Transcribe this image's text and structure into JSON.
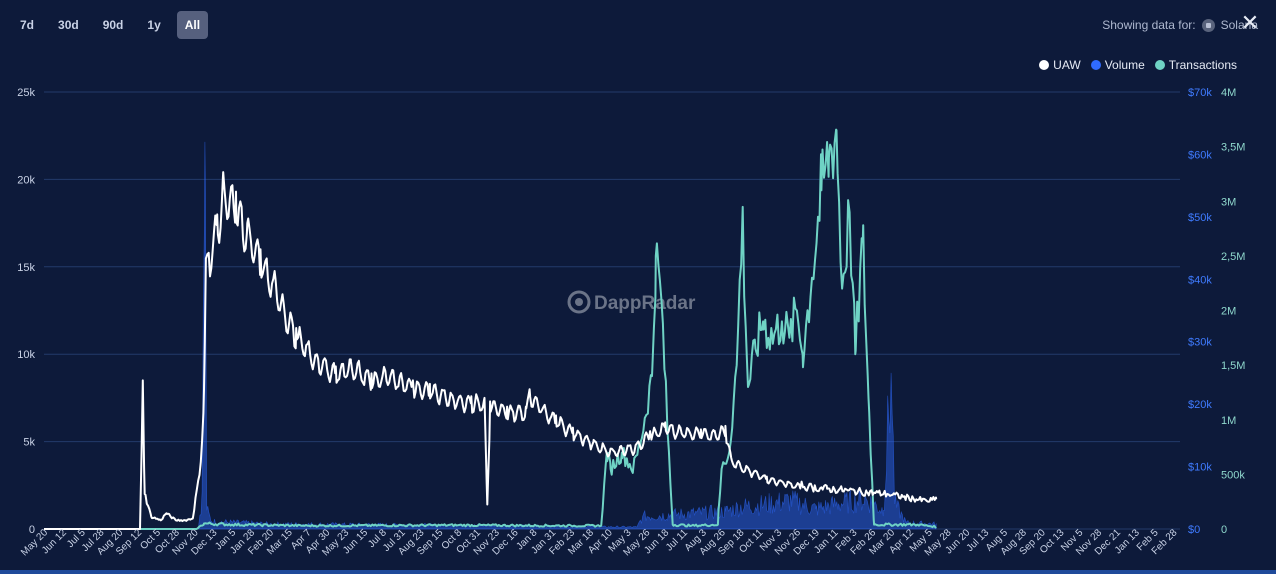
{
  "range_buttons": [
    "7d",
    "30d",
    "90d",
    "1y",
    "All"
  ],
  "active_range": "All",
  "showing": {
    "label": "Showing data for:",
    "chain": "Solana"
  },
  "watermark": "DappRadar",
  "colors": {
    "uaw": "#ffffff",
    "volume": "#2f6bff",
    "transactions": "#6fd3c5",
    "background": "#0d1a3a",
    "grid": "#233a6a"
  },
  "chart_data": {
    "type": "line",
    "title": "",
    "legend_position": "top-right",
    "grid": true,
    "x_ticks": [
      "May 20",
      "Jun 12",
      "Jul 5",
      "Jul 28",
      "Aug 20",
      "Sep 12",
      "Oct 5",
      "Oct 28",
      "Nov 20",
      "Dec 13",
      "Jan 5",
      "Jan 28",
      "Feb 20",
      "Mar 15",
      "Apr 7",
      "Apr 30",
      "May 23",
      "Jun 15",
      "Jul 8",
      "Jul 31",
      "Aug 23",
      "Sep 15",
      "Oct 8",
      "Oct 31",
      "Nov 23",
      "Dec 16",
      "Jan 8",
      "Jan 31",
      "Feb 23",
      "Mar 18",
      "Apr 10",
      "May 3",
      "May 26",
      "Jun 18",
      "Jul 11",
      "Aug 3",
      "Aug 26",
      "Sep 18",
      "Oct 11",
      "Nov 3",
      "Nov 26",
      "Dec 19",
      "Jan 11",
      "Feb 3",
      "Feb 26",
      "Mar 20",
      "Apr 12",
      "May 5",
      "May 28",
      "Jun 20",
      "Jul 13",
      "Aug 5",
      "Aug 28",
      "Sep 20",
      "Oct 13",
      "Nov 5",
      "Nov 28",
      "Dec 21",
      "Jan 13",
      "Feb 5",
      "Feb 28"
    ],
    "axes": {
      "uaw": {
        "ylim": [
          0,
          25000
        ],
        "ticks": [
          "0",
          "5k",
          "10k",
          "15k",
          "20k",
          "25k"
        ]
      },
      "volume": {
        "ylim": [
          0,
          70000
        ],
        "ticks": [
          "$0",
          "$10k",
          "$20k",
          "$30k",
          "$40k",
          "$50k",
          "$60k",
          "$70k"
        ]
      },
      "transactions": {
        "ylim": [
          0,
          4000000
        ],
        "ticks": [
          "0",
          "500k",
          "1M",
          "1,5M",
          "2M",
          "2,5M",
          "3M",
          "3,5M",
          "4M"
        ]
      }
    },
    "series": [
      {
        "name": "UAW",
        "axis": "uaw",
        "type": "line",
        "points": [
          [
            0,
            0
          ],
          [
            5.1,
            0
          ],
          [
            5.25,
            8500
          ],
          [
            5.35,
            2000
          ],
          [
            5.7,
            700
          ],
          [
            6.2,
            500
          ],
          [
            6.5,
            900
          ],
          [
            7,
            500
          ],
          [
            7.5,
            500
          ],
          [
            7.9,
            600
          ],
          [
            8.3,
            3500
          ],
          [
            8.5,
            8000
          ],
          [
            8.6,
            15500
          ],
          [
            8.75,
            15800
          ],
          [
            9.2,
            18000
          ],
          [
            9.5,
            20000
          ],
          [
            10.2,
            19300
          ],
          [
            10.8,
            17500
          ],
          [
            11.5,
            16000
          ],
          [
            12.3,
            14300
          ],
          [
            13.4,
            11500
          ],
          [
            14.5,
            10000
          ],
          [
            15.5,
            9300
          ],
          [
            16.3,
            9700
          ],
          [
            17.4,
            8900
          ],
          [
            18.5,
            9100
          ],
          [
            19.6,
            8500
          ],
          [
            20.5,
            8300
          ],
          [
            21.6,
            7800
          ],
          [
            22.7,
            7600
          ],
          [
            23.4,
            7500
          ],
          [
            23.55,
            1400
          ],
          [
            23.7,
            7300
          ],
          [
            24.6,
            7000
          ],
          [
            25.6,
            7000
          ],
          [
            25.8,
            8000
          ],
          [
            26.6,
            7100
          ],
          [
            27.2,
            6500
          ],
          [
            28.1,
            5800
          ],
          [
            29.2,
            5100
          ],
          [
            30.1,
            4600
          ],
          [
            30.6,
            4700
          ],
          [
            31.5,
            4900
          ],
          [
            32.2,
            5600
          ],
          [
            33,
            6100
          ],
          [
            33.8,
            5800
          ],
          [
            34.9,
            5700
          ],
          [
            35.6,
            5600
          ],
          [
            36.2,
            5900
          ],
          [
            36.5,
            4100
          ],
          [
            37.4,
            3500
          ],
          [
            38.4,
            3000
          ],
          [
            39.5,
            2700
          ],
          [
            40.6,
            2400
          ],
          [
            41.6,
            2300
          ],
          [
            42.7,
            2200
          ],
          [
            43.7,
            2100
          ],
          [
            44.8,
            2000
          ],
          [
            45.8,
            1800
          ],
          [
            46.9,
            1600
          ],
          [
            47.4,
            1700
          ]
        ]
      },
      {
        "name": "Volume",
        "axis": "volume",
        "type": "area",
        "points": [
          [
            0,
            0
          ],
          [
            8.2,
            0
          ],
          [
            8.4,
            6000
          ],
          [
            8.55,
            62000
          ],
          [
            8.65,
            3000
          ],
          [
            8.9,
            1200
          ],
          [
            12,
            800
          ],
          [
            21,
            600
          ],
          [
            31.5,
            300
          ],
          [
            31.8,
            2000
          ],
          [
            36.2,
            2800
          ],
          [
            37,
            3500
          ],
          [
            38.5,
            4000
          ],
          [
            39.7,
            4500
          ],
          [
            41,
            3200
          ],
          [
            42.2,
            4000
          ],
          [
            43.6,
            4800
          ],
          [
            44.6,
            3000
          ],
          [
            45,
            25000
          ],
          [
            45.2,
            4000
          ],
          [
            45.8,
            1000
          ],
          [
            47.4,
            800
          ]
        ]
      },
      {
        "name": "Transactions",
        "axis": "transactions",
        "type": "line",
        "points": [
          [
            0,
            0
          ],
          [
            8.1,
            0
          ],
          [
            8.5,
            50000
          ],
          [
            10,
            40000
          ],
          [
            14,
            30000
          ],
          [
            22,
            35000
          ],
          [
            28,
            30000
          ],
          [
            29.6,
            30000
          ],
          [
            29.9,
            700000
          ],
          [
            30.1,
            550000
          ],
          [
            30.7,
            700000
          ],
          [
            31.3,
            550000
          ],
          [
            31.7,
            800000
          ],
          [
            32.3,
            1400000
          ],
          [
            32.5,
            2500000
          ],
          [
            32.8,
            2100000
          ],
          [
            33.1,
            1000000
          ],
          [
            33.4,
            40000
          ],
          [
            34.4,
            30000
          ],
          [
            35.8,
            40000
          ],
          [
            36,
            550000
          ],
          [
            36.4,
            700000
          ],
          [
            36.8,
            1500000
          ],
          [
            37.1,
            2850000
          ],
          [
            37.4,
            1300000
          ],
          [
            37.8,
            1650000
          ],
          [
            38.2,
            1900000
          ],
          [
            38.7,
            1750000
          ],
          [
            39.2,
            1900000
          ],
          [
            39.6,
            1750000
          ],
          [
            40,
            2000000
          ],
          [
            40.3,
            1600000
          ],
          [
            40.8,
            2300000
          ],
          [
            41.3,
            3100000
          ],
          [
            41.7,
            3400000
          ],
          [
            42.1,
            3650000
          ],
          [
            42.4,
            2200000
          ],
          [
            42.8,
            2900000
          ],
          [
            43.1,
            1600000
          ],
          [
            43.5,
            2650000
          ],
          [
            43.8,
            1200000
          ],
          [
            44.1,
            40000
          ],
          [
            46.4,
            40000
          ],
          [
            47.4,
            20000
          ]
        ]
      }
    ]
  }
}
